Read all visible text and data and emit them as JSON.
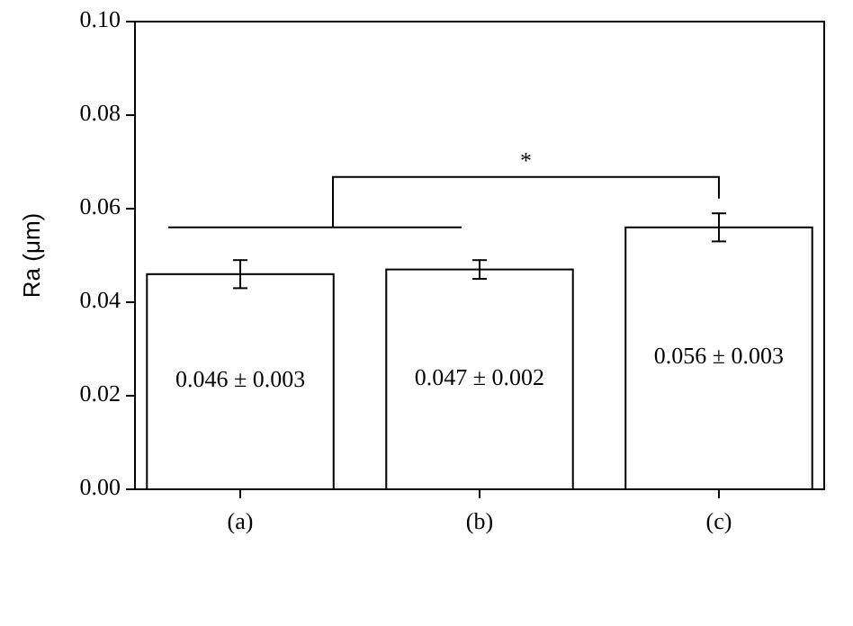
{
  "chart_data": {
    "type": "bar",
    "ylabel": "Ra (μm)",
    "categories": [
      "(a)",
      "(b)",
      "(c)"
    ],
    "values": [
      0.046,
      0.047,
      0.056
    ],
    "errors": [
      0.003,
      0.002,
      0.003
    ],
    "color": "#ffffff",
    "value_labels": [
      "0.046 ± 0.003",
      "0.047 ± 0.002",
      "0.056 ± 0.003"
    ],
    "ylim": [
      0,
      0.1
    ],
    "yticks": [
      {
        "value": 0,
        "label": "0.00"
      },
      {
        "value": 0.02,
        "label": "0.02"
      },
      {
        "value": 0.04,
        "label": "0.04"
      },
      {
        "value": 0.06,
        "label": "0.06"
      },
      {
        "value": 0.08,
        "label": "0.08"
      },
      {
        "value": 0.1,
        "label": "0.10"
      }
    ],
    "annotations": [
      "*"
    ],
    "grid": false
  }
}
